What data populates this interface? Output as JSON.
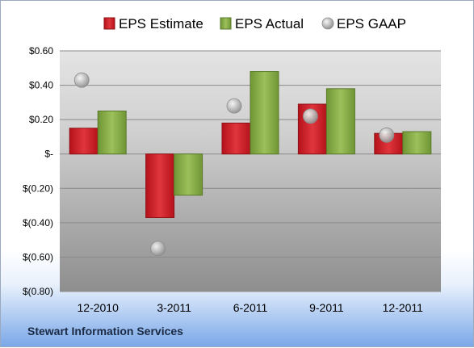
{
  "company_name": "Stewart Information Services",
  "chart_data": {
    "type": "bar",
    "categories": [
      "12-2010",
      "3-2011",
      "6-2011",
      "9-2011",
      "12-2011"
    ],
    "series": [
      {
        "name": "EPS Estimate",
        "type": "bar",
        "color": "#d8212a",
        "values": [
          0.15,
          -0.37,
          0.18,
          0.29,
          0.12
        ]
      },
      {
        "name": "EPS Actual",
        "type": "bar",
        "color": "#8db14b",
        "values": [
          0.25,
          -0.24,
          0.48,
          0.38,
          0.13
        ]
      },
      {
        "name": "EPS GAAP",
        "type": "scatter",
        "color": "#b8b8b8",
        "values": [
          0.43,
          -0.55,
          0.28,
          0.22,
          0.11
        ]
      }
    ],
    "yticks": [
      {
        "value": 0.6,
        "label": "$0.60"
      },
      {
        "value": 0.4,
        "label": "$0.40"
      },
      {
        "value": 0.2,
        "label": "$0.20"
      },
      {
        "value": 0,
        "label": "$-"
      },
      {
        "value": -0.2,
        "label": "$(0.20)"
      },
      {
        "value": -0.4,
        "label": "$(0.40)"
      },
      {
        "value": -0.6,
        "label": "$(0.60)"
      },
      {
        "value": -0.8,
        "label": "$(0.80)"
      }
    ],
    "ylim": [
      -0.8,
      0.6
    ],
    "grid": true,
    "legend_position": "top"
  }
}
